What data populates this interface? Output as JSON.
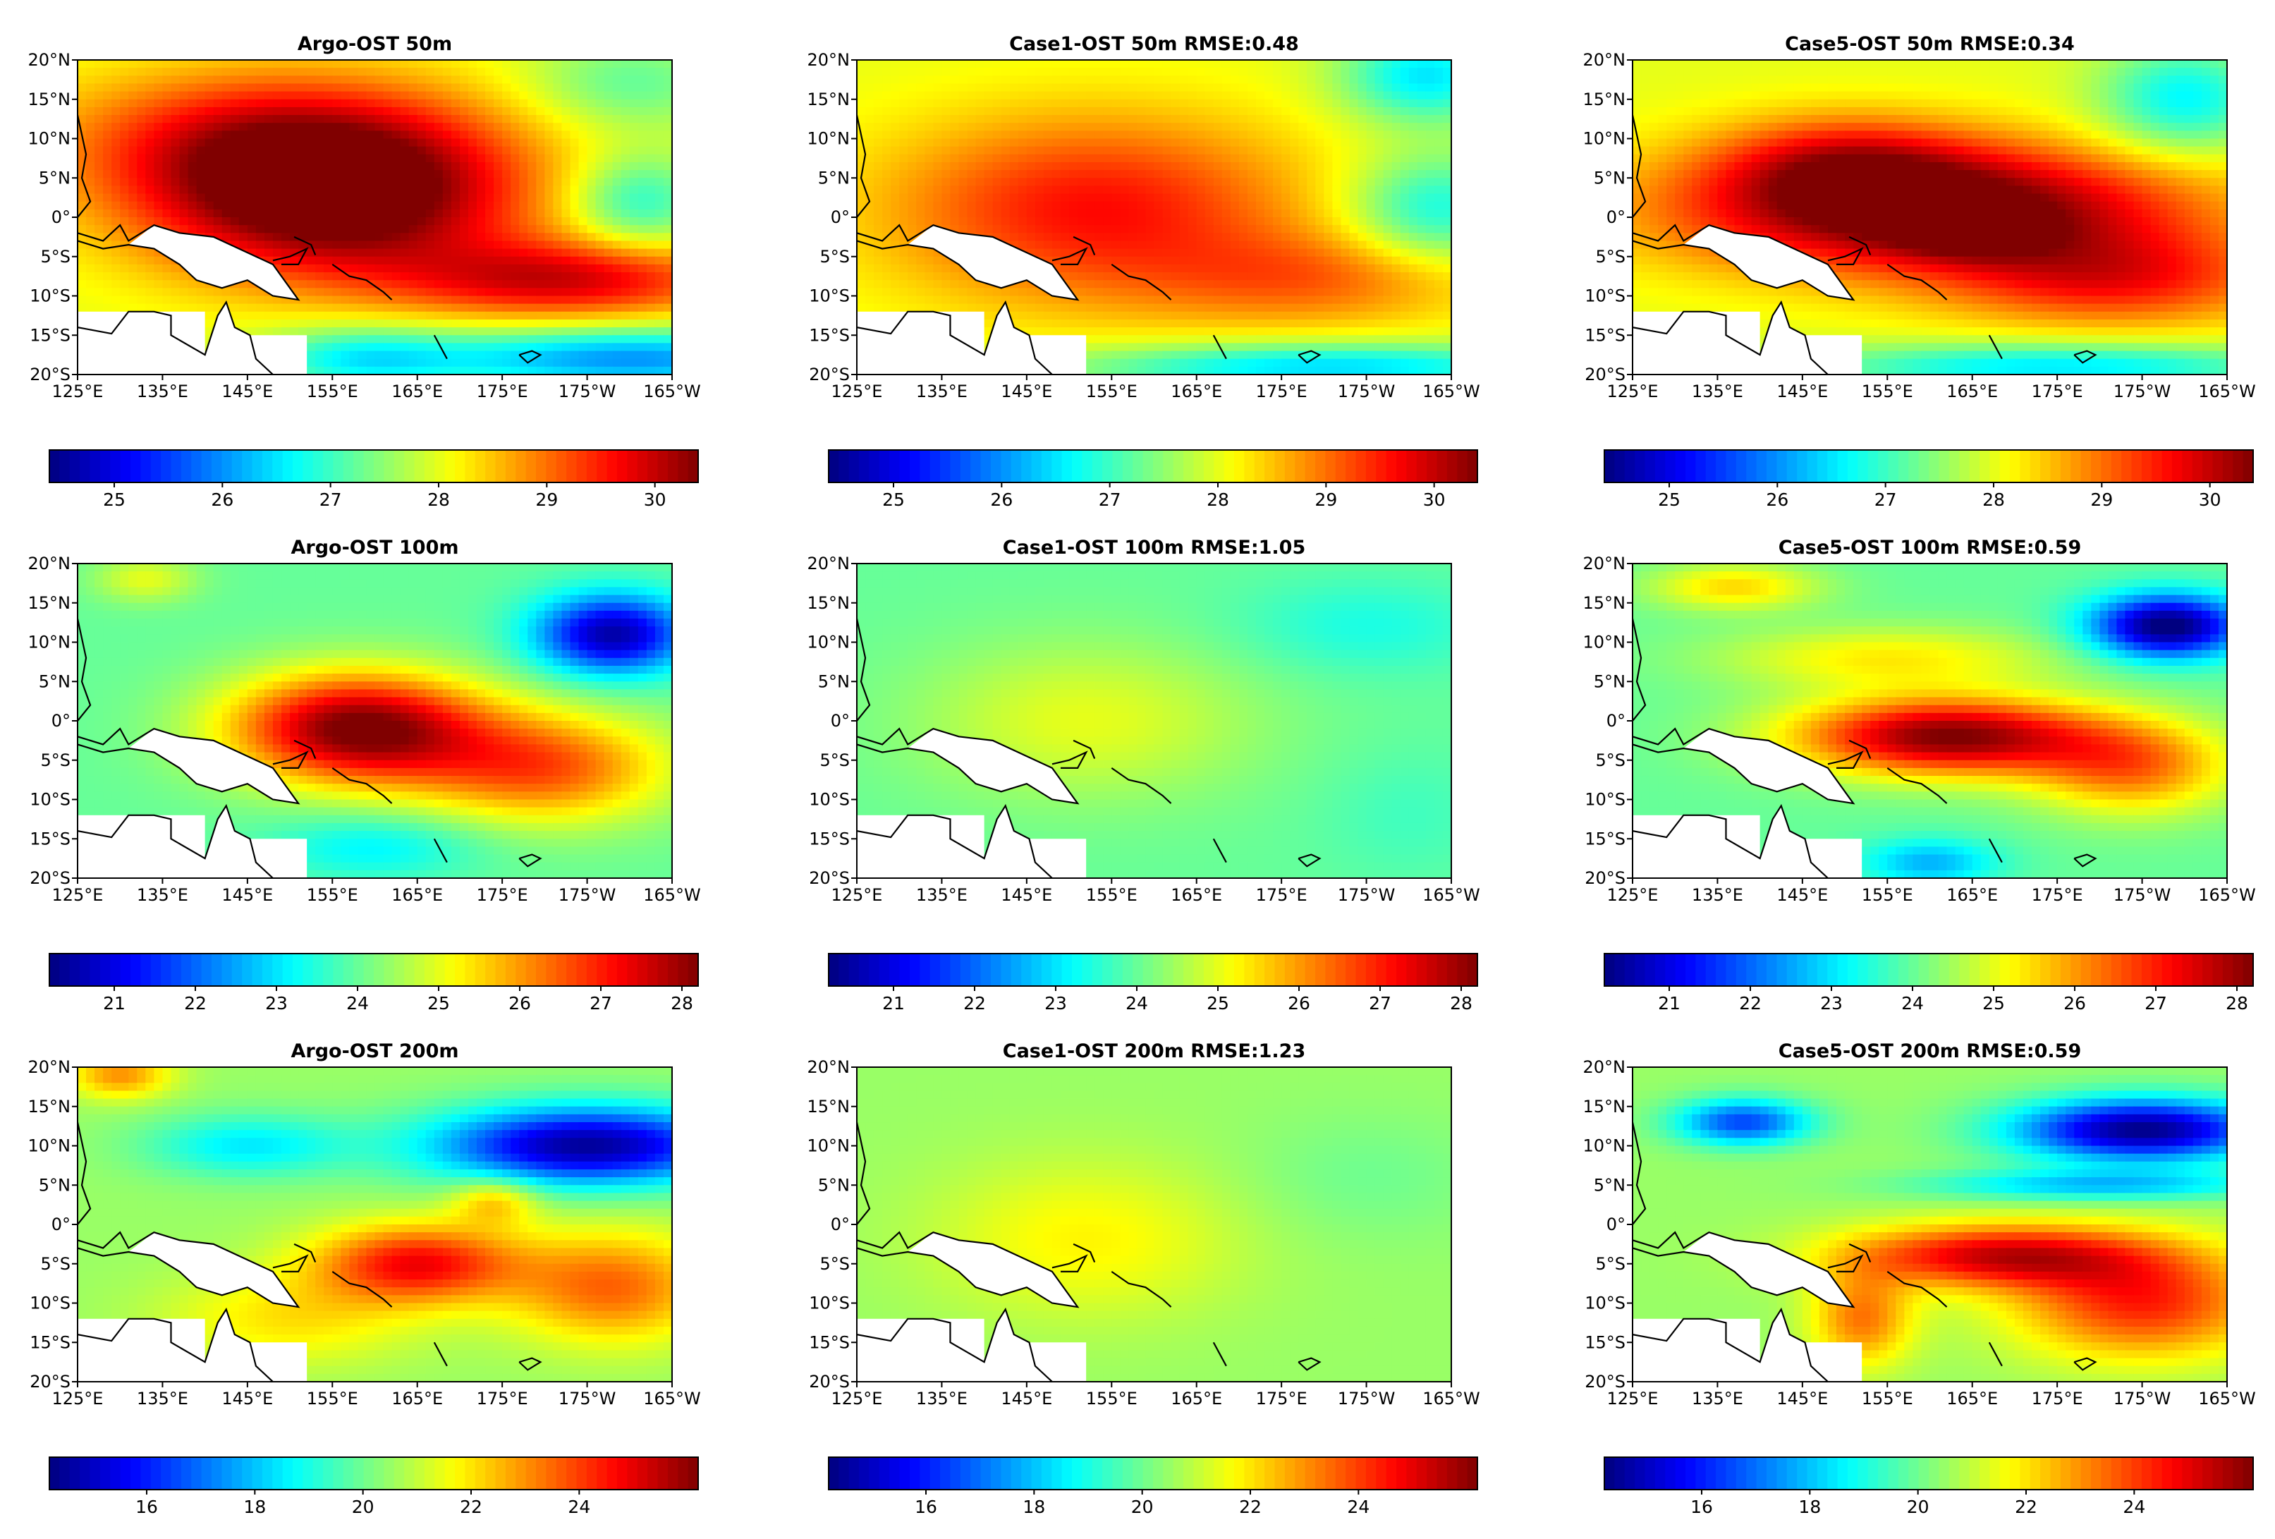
{
  "chart_data": {
    "type": "heatmap",
    "colormap": "jet",
    "region": {
      "lon_range": [
        125,
        195
      ],
      "lat_range": [
        -20,
        20
      ],
      "lon_tick_labels": [
        "125°E",
        "135°E",
        "145°E",
        "155°E",
        "165°E",
        "175°E",
        "175°W",
        "165°W"
      ],
      "lat_tick_labels": [
        "20°N",
        "15°N",
        "10°N",
        "5°N",
        "0°",
        "5°S",
        "10°S",
        "15°S",
        "20°S"
      ]
    },
    "rows": [
      {
        "depth": "50m",
        "colorbar": {
          "vmin": 24.4,
          "vmax": 30.4,
          "ticks": [
            "25",
            "26",
            "27",
            "28",
            "29",
            "30"
          ]
        },
        "panels": [
          {
            "title": "Argo-OST 50m",
            "source": "Argo",
            "rmse": null
          },
          {
            "title": "Case1-OST 50m RMSE:0.48",
            "source": "Case1",
            "rmse": 0.48
          },
          {
            "title": "Case5-OST 50m  RMSE:0.34",
            "source": "Case5",
            "rmse": 0.34
          }
        ]
      },
      {
        "depth": "100m",
        "colorbar": {
          "vmin": 20.2,
          "vmax": 28.2,
          "ticks": [
            "21",
            "22",
            "23",
            "24",
            "25",
            "26",
            "27",
            "28"
          ]
        },
        "panels": [
          {
            "title": "Argo-OST 100m",
            "source": "Argo",
            "rmse": null
          },
          {
            "title": "Case1-OST 100m RMSE:1.05",
            "source": "Case1",
            "rmse": 1.05
          },
          {
            "title": "Case5-OST 100m  RMSE:0.59",
            "source": "Case5",
            "rmse": 0.59
          }
        ]
      },
      {
        "depth": "200m",
        "colorbar": {
          "vmin": 14.2,
          "vmax": 26.2,
          "ticks": [
            "16",
            "18",
            "20",
            "22",
            "24"
          ]
        },
        "panels": [
          {
            "title": "Argo-OST 200m",
            "source": "Argo",
            "rmse": null
          },
          {
            "title": "Case1-OST 200m RMSE:1.23",
            "source": "Case1",
            "rmse": 1.23
          },
          {
            "title": "Case5-OST 200m  RMSE:0.59",
            "source": "Case5",
            "rmse": 0.59
          }
        ]
      }
    ],
    "fields": {
      "Argo-50": [
        {
          "lon": 155,
          "lat": 2,
          "rx": 22,
          "ry": 10,
          "dv": 2.7
        },
        {
          "lon": 148,
          "lat": 10,
          "rx": 25,
          "ry": 9,
          "dv": 1.5
        },
        {
          "lon": 183,
          "lat": -8,
          "rx": 20,
          "ry": 5,
          "dv": 1.8
        },
        {
          "lon": 191,
          "lat": 2,
          "rx": 8,
          "ry": 6,
          "dv": -1.2
        },
        {
          "lon": 190,
          "lat": -18,
          "rx": 25,
          "ry": 4,
          "dv": -2.0
        },
        {
          "lon": 158,
          "lat": -18,
          "rx": 12,
          "ry": 4,
          "dv": -1.2
        },
        {
          "lon": 190,
          "lat": 17,
          "rx": 12,
          "ry": 6,
          "dv": -0.8
        }
      ],
      "Case1-50": [
        {
          "lon": 153,
          "lat": 1,
          "rx": 25,
          "ry": 12,
          "dv": 1.6
        },
        {
          "lon": 180,
          "lat": -8,
          "rx": 20,
          "ry": 6,
          "dv": 0.9
        },
        {
          "lon": 193,
          "lat": 1,
          "rx": 10,
          "ry": 7,
          "dv": -1.3
        },
        {
          "lon": 192,
          "lat": 18,
          "rx": 10,
          "ry": 6,
          "dv": -1.5
        },
        {
          "lon": 180,
          "lat": -19,
          "rx": 30,
          "ry": 3,
          "dv": -1.6
        }
      ],
      "Case5-50": [
        {
          "lon": 160,
          "lat": 1,
          "rx": 30,
          "ry": 8,
          "dv": 2.8
        },
        {
          "lon": 150,
          "lat": 7,
          "rx": 15,
          "ry": 6,
          "dv": 1.2
        },
        {
          "lon": 182,
          "lat": -8,
          "rx": 20,
          "ry": 6,
          "dv": 1.4
        },
        {
          "lon": 190,
          "lat": 15,
          "rx": 10,
          "ry": 7,
          "dv": -1.4
        },
        {
          "lon": 175,
          "lat": -19,
          "rx": 30,
          "ry": 3,
          "dv": -1.5
        },
        {
          "lon": 165,
          "lat": -2,
          "rx": 8,
          "ry": 3,
          "dv": 0.8
        }
      ],
      "Argo-100": [
        {
          "lon": 158,
          "lat": -1,
          "rx": 15,
          "ry": 7,
          "dv": 4.3
        },
        {
          "lon": 180,
          "lat": -6,
          "rx": 15,
          "ry": 7,
          "dv": 2.5
        },
        {
          "lon": 188,
          "lat": 11,
          "rx": 9,
          "ry": 5,
          "dv": -3.5
        },
        {
          "lon": 133,
          "lat": 18,
          "rx": 6,
          "ry": 3,
          "dv": 1.0
        },
        {
          "lon": 160,
          "lat": -16,
          "rx": 12,
          "ry": 4,
          "dv": -0.9
        }
      ],
      "Case1-100": [
        {
          "lon": 152,
          "lat": 0,
          "rx": 20,
          "ry": 10,
          "dv": 1.0
        },
        {
          "lon": 185,
          "lat": 12,
          "rx": 15,
          "ry": 6,
          "dv": -0.6
        },
        {
          "lon": 190,
          "lat": -12,
          "rx": 10,
          "ry": 8,
          "dv": -0.3
        }
      ],
      "Case5-100": [
        {
          "lon": 162,
          "lat": -2,
          "rx": 18,
          "ry": 5,
          "dv": 4.2
        },
        {
          "lon": 184,
          "lat": -6,
          "rx": 12,
          "ry": 6,
          "dv": 2.2
        },
        {
          "lon": 188,
          "lat": 12,
          "rx": 9,
          "ry": 4,
          "dv": -4.0
        },
        {
          "lon": 155,
          "lat": 8,
          "rx": 20,
          "ry": 4,
          "dv": 1.3
        },
        {
          "lon": 137,
          "lat": 17,
          "rx": 10,
          "ry": 3,
          "dv": 1.5
        },
        {
          "lon": 160,
          "lat": -18,
          "rx": 8,
          "ry": 3,
          "dv": -1.4
        }
      ],
      "Argo-200": [
        {
          "lon": 165,
          "lat": -5,
          "rx": 12,
          "ry": 5,
          "dv": 4.2
        },
        {
          "lon": 188,
          "lat": -8,
          "rx": 12,
          "ry": 7,
          "dv": 3.0
        },
        {
          "lon": 185,
          "lat": 10,
          "rx": 18,
          "ry": 5,
          "dv": -6.0
        },
        {
          "lon": 145,
          "lat": 10,
          "rx": 12,
          "ry": 4,
          "dv": -2.0
        },
        {
          "lon": 130,
          "lat": 19,
          "rx": 6,
          "ry": 3,
          "dv": 2.5
        },
        {
          "lon": 150,
          "lat": -12,
          "rx": 15,
          "ry": 6,
          "dv": 1.5
        },
        {
          "lon": 174,
          "lat": 3,
          "rx": 5,
          "ry": 3,
          "dv": 2.0
        }
      ],
      "Case1-200": [
        {
          "lon": 152,
          "lat": -2,
          "rx": 18,
          "ry": 10,
          "dv": 1.3
        },
        {
          "lon": 185,
          "lat": 6,
          "rx": 15,
          "ry": 8,
          "dv": -0.5
        }
      ],
      "Case5-200": [
        {
          "lon": 168,
          "lat": -4,
          "rx": 18,
          "ry": 4,
          "dv": 4.6
        },
        {
          "lon": 185,
          "lat": -10,
          "rx": 15,
          "ry": 7,
          "dv": 3.8
        },
        {
          "lon": 185,
          "lat": 12,
          "rx": 15,
          "ry": 4,
          "dv": -6.2
        },
        {
          "lon": 138,
          "lat": 13,
          "rx": 8,
          "ry": 3,
          "dv": -4.0
        },
        {
          "lon": 180,
          "lat": 5,
          "rx": 20,
          "ry": 2,
          "dv": -2.5
        },
        {
          "lon": 152,
          "lat": -12,
          "rx": 6,
          "ry": 6,
          "dv": 2.8
        }
      ]
    },
    "field_base": {
      "50m": 28.0,
      "100m": 24.0,
      "200m": 20.5
    }
  },
  "land_color": "#ffffff",
  "coast_color": "#000000"
}
